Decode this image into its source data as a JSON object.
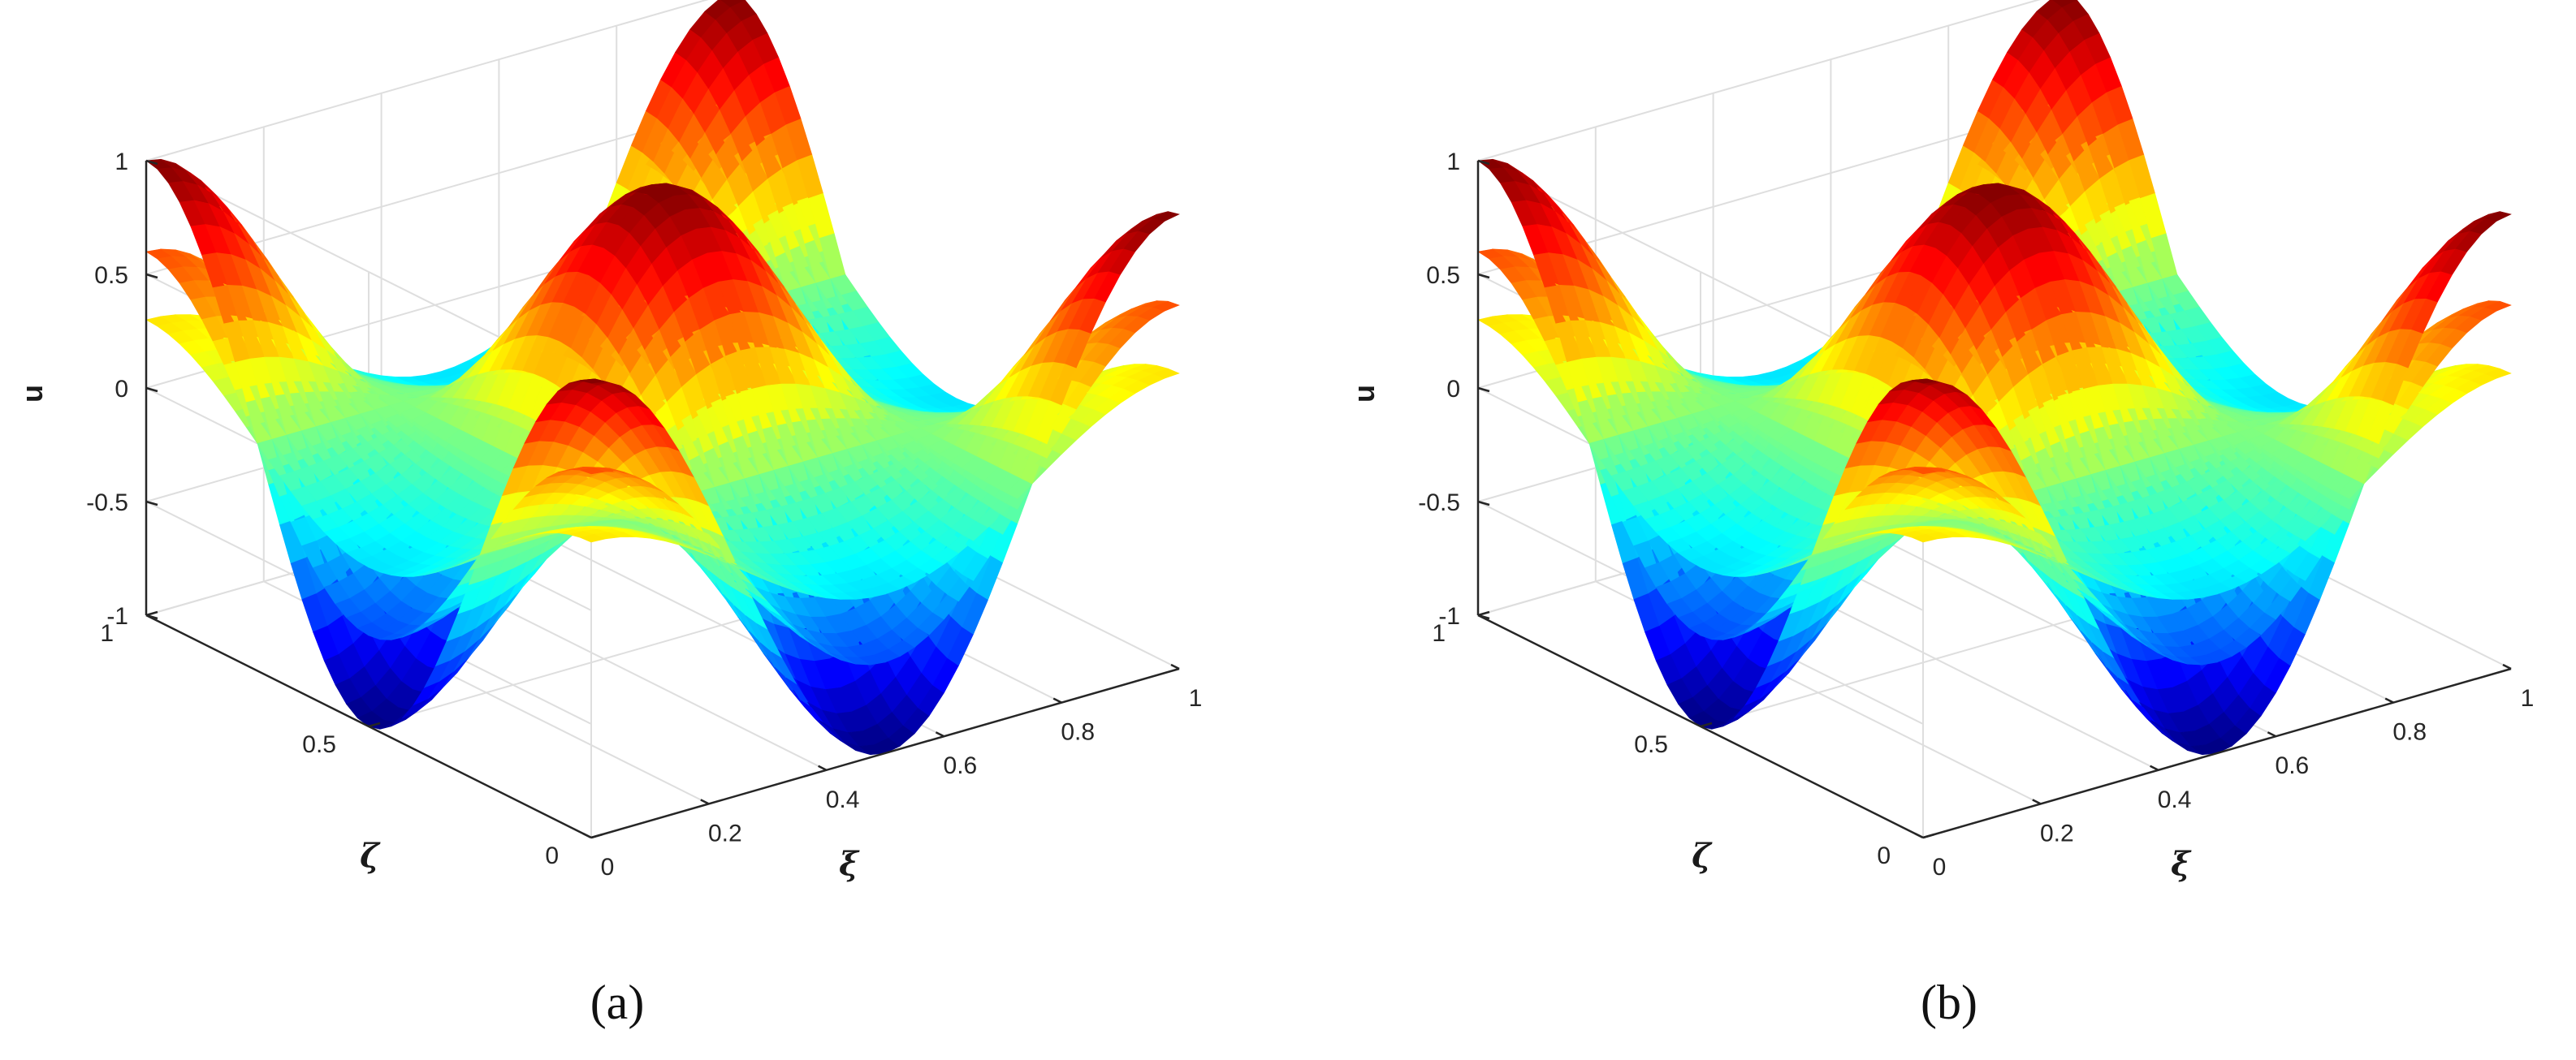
{
  "chart_data": [
    {
      "type": "surface",
      "panel_label": "(a)",
      "xlabel": "ξ",
      "ylabel": "ζ",
      "zlabel": "u",
      "xlim": [
        0,
        1
      ],
      "ylim": [
        0,
        1
      ],
      "zlim": [
        -1,
        1
      ],
      "xticks": [
        "0",
        "0.2",
        "0.4",
        "0.6",
        "0.8",
        "1"
      ],
      "yticks": [
        "0",
        "0.5",
        "1"
      ],
      "zticks": [
        "-1",
        "-0.5",
        "0",
        "0.5",
        "1"
      ],
      "colormap": "jet",
      "grid": true,
      "surfaces": [
        {
          "function": "cos(2πξ)·cos(2πζ)",
          "amplitude": 1.0
        },
        {
          "function": "cos(2πξ)·cos(2πζ)",
          "amplitude": 0.6
        },
        {
          "function": "cos(2πξ)·cos(2πζ)",
          "amplitude": 0.3
        }
      ]
    },
    {
      "type": "surface",
      "panel_label": "(b)",
      "xlabel": "ξ",
      "ylabel": "ζ",
      "zlabel": "u",
      "xlim": [
        0,
        1
      ],
      "ylim": [
        0,
        1
      ],
      "zlim": [
        -1,
        1
      ],
      "xticks": [
        "0",
        "0.2",
        "0.4",
        "0.6",
        "0.8",
        "1"
      ],
      "yticks": [
        "0",
        "0.5",
        "1"
      ],
      "zticks": [
        "-1",
        "-0.5",
        "0",
        "0.5",
        "1"
      ],
      "colormap": "jet",
      "grid": true,
      "surfaces": [
        {
          "function": "cos(2πξ)·cos(2πζ)",
          "amplitude": 1.0
        },
        {
          "function": "cos(2πξ)·cos(2πζ)",
          "amplitude": 0.6
        },
        {
          "function": "cos(2πξ)·cos(2πζ)",
          "amplitude": 0.3
        }
      ]
    }
  ]
}
